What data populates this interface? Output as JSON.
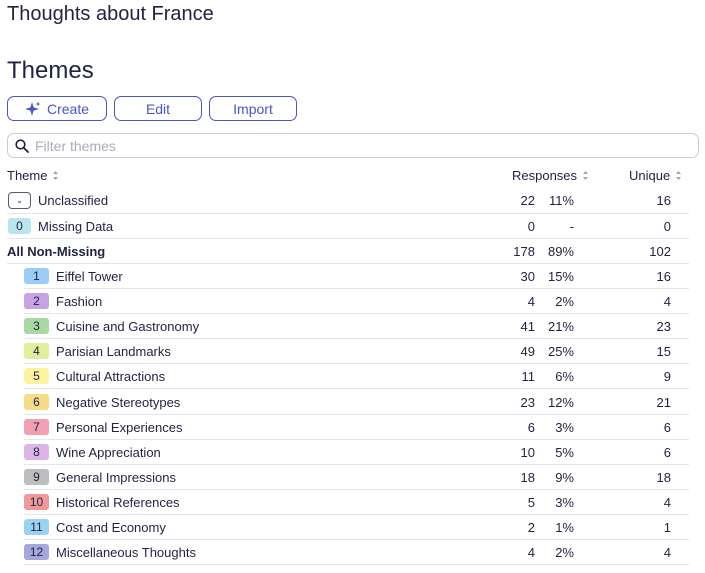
{
  "page_title": "Thoughts about France",
  "section_title": "Themes",
  "toolbar": {
    "create": "Create",
    "edit": "Edit",
    "import": "Import"
  },
  "search": {
    "placeholder": "Filter themes",
    "value": ""
  },
  "columns": {
    "theme": "Theme",
    "responses": "Responses",
    "unique": "Unique"
  },
  "special_rows": [
    {
      "badge": "-",
      "label": "Unclassified",
      "count": "22",
      "pct": "11%",
      "unique": "16"
    },
    {
      "badge": "0",
      "label": "Missing Data",
      "count": "0",
      "pct": "-",
      "unique": "0",
      "color": "#b9e6ee"
    },
    {
      "badge": "",
      "label": "All Non-Missing",
      "count": "178",
      "pct": "89%",
      "unique": "102"
    }
  ],
  "themes": [
    {
      "badge": "1",
      "label": "Eiffel Tower",
      "count": "30",
      "pct": "15%",
      "unique": "16",
      "color": "#9ccbf4"
    },
    {
      "badge": "2",
      "label": "Fashion",
      "count": "4",
      "pct": "2%",
      "unique": "4",
      "color": "#c9a2e3"
    },
    {
      "badge": "3",
      "label": "Cuisine and Gastronomy",
      "count": "41",
      "pct": "21%",
      "unique": "23",
      "color": "#a8d9a4"
    },
    {
      "badge": "4",
      "label": "Parisian Landmarks",
      "count": "49",
      "pct": "25%",
      "unique": "15",
      "color": "#e4ec9e"
    },
    {
      "badge": "5",
      "label": "Cultural Attractions",
      "count": "11",
      "pct": "6%",
      "unique": "9",
      "color": "#fbf3a0"
    },
    {
      "badge": "6",
      "label": "Negative Stereotypes",
      "count": "23",
      "pct": "12%",
      "unique": "21",
      "color": "#f6db8a"
    },
    {
      "badge": "7",
      "label": "Personal Experiences",
      "count": "6",
      "pct": "3%",
      "unique": "6",
      "color": "#f29eb4"
    },
    {
      "badge": "8",
      "label": "Wine Appreciation",
      "count": "10",
      "pct": "5%",
      "unique": "6",
      "color": "#dcb4e8"
    },
    {
      "badge": "9",
      "label": "General Impressions",
      "count": "18",
      "pct": "9%",
      "unique": "18",
      "color": "#bdbdbd"
    },
    {
      "badge": "10",
      "label": "Historical References",
      "count": "5",
      "pct": "3%",
      "unique": "4",
      "color": "#ef9a9a"
    },
    {
      "badge": "11",
      "label": "Cost and Economy",
      "count": "2",
      "pct": "1%",
      "unique": "1",
      "color": "#9ad3f2"
    },
    {
      "badge": "12",
      "label": "Miscellaneous Thoughts",
      "count": "4",
      "pct": "2%",
      "unique": "4",
      "color": "#a4a8dc"
    }
  ]
}
